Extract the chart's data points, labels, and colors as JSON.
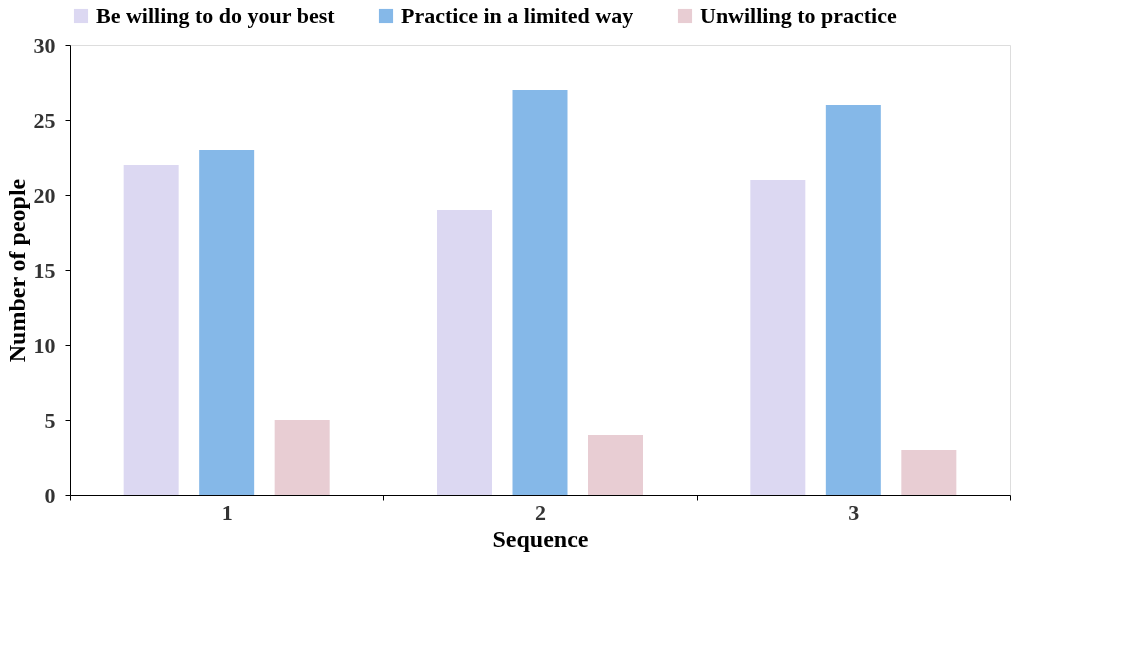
{
  "chart_data": {
    "type": "bar",
    "xlabel": "Sequence",
    "ylabel": "Number of people",
    "categories": [
      "1",
      "2",
      "3"
    ],
    "series": [
      {
        "name": "Be willing to do your best",
        "color": "#dcd8f2",
        "values": [
          22,
          19,
          21
        ]
      },
      {
        "name": "Practice in a limited way",
        "color": "#85b8e8",
        "values": [
          23,
          27,
          26
        ]
      },
      {
        "name": "Unwilling to practice",
        "color": "#e8cdd3",
        "values": [
          5,
          4,
          3
        ]
      }
    ],
    "ylim": [
      0,
      30
    ],
    "yticks": [
      0,
      5,
      10,
      15,
      20,
      25,
      30
    ],
    "grid": false,
    "legend": "top"
  }
}
